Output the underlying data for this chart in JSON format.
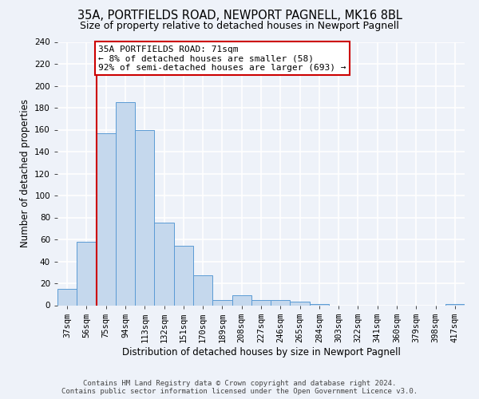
{
  "title": "35A, PORTFIELDS ROAD, NEWPORT PAGNELL, MK16 8BL",
  "subtitle": "Size of property relative to detached houses in Newport Pagnell",
  "xlabel": "Distribution of detached houses by size in Newport Pagnell",
  "ylabel": "Number of detached properties",
  "bar_labels": [
    "37sqm",
    "56sqm",
    "75sqm",
    "94sqm",
    "113sqm",
    "132sqm",
    "151sqm",
    "170sqm",
    "189sqm",
    "208sqm",
    "227sqm",
    "246sqm",
    "265sqm",
    "284sqm",
    "303sqm",
    "322sqm",
    "341sqm",
    "360sqm",
    "379sqm",
    "398sqm",
    "417sqm"
  ],
  "bar_values": [
    15,
    58,
    157,
    185,
    160,
    75,
    54,
    27,
    5,
    9,
    5,
    5,
    3,
    1,
    0,
    0,
    0,
    0,
    0,
    0,
    1
  ],
  "bar_color": "#c5d8ed",
  "bar_edge_color": "#5b9bd5",
  "ylim": [
    0,
    240
  ],
  "yticks": [
    0,
    20,
    40,
    60,
    80,
    100,
    120,
    140,
    160,
    180,
    200,
    220,
    240
  ],
  "vline_color": "#cc0000",
  "annotation_title": "35A PORTFIELDS ROAD: 71sqm",
  "annotation_line1": "← 8% of detached houses are smaller (58)",
  "annotation_line2": "92% of semi-detached houses are larger (693) →",
  "annotation_box_color": "#cc0000",
  "footer1": "Contains HM Land Registry data © Crown copyright and database right 2024.",
  "footer2": "Contains public sector information licensed under the Open Government Licence v3.0.",
  "background_color": "#eef2f9",
  "grid_color": "#ffffff",
  "title_fontsize": 10.5,
  "subtitle_fontsize": 9,
  "axis_label_fontsize": 8.5,
  "tick_fontsize": 7.5,
  "footer_fontsize": 6.5
}
